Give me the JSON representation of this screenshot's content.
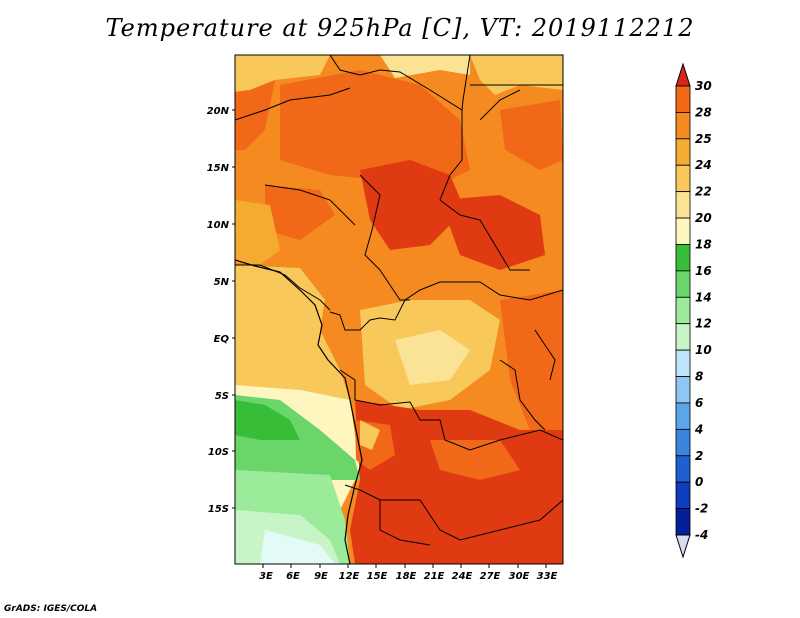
{
  "title": "Temperature at 925hPa [C], VT: 2019112212",
  "footer": "GrADS: IGES/COLA",
  "map": {
    "variable": "Temperature",
    "level": "925hPa",
    "units": "C",
    "valid_time": "2019112212",
    "lat_labels": [
      "20N",
      "15N",
      "10N",
      "5N",
      "EQ",
      "5S",
      "10S",
      "15S"
    ],
    "lon_labels": [
      "3E",
      "6E",
      "9E",
      "12E",
      "15E",
      "18E",
      "21E",
      "24E",
      "27E",
      "30E",
      "33E"
    ]
  },
  "colorbar": {
    "labels": [
      "30",
      "28",
      "25",
      "24",
      "22",
      "20",
      "18",
      "16",
      "14",
      "12",
      "10",
      "8",
      "6",
      "4",
      "2",
      "0",
      "-2",
      "-4"
    ],
    "colors": [
      "#e03a12",
      "#f06818",
      "#f58a20",
      "#f5aa30",
      "#f8c85a",
      "#fbe396",
      "#fdf6bf",
      "#37bd37",
      "#6ad66a",
      "#9beb9b",
      "#c8f5c8",
      "#bde4f8",
      "#8ec8f2",
      "#5ba6ea",
      "#3a86df",
      "#1f5fcf",
      "#0d3ebd",
      "#061e9a",
      "#0a0a6e"
    ],
    "top_arrow_color": "#d8261a",
    "bottom_arrow_color": "#d8dcf3"
  }
}
